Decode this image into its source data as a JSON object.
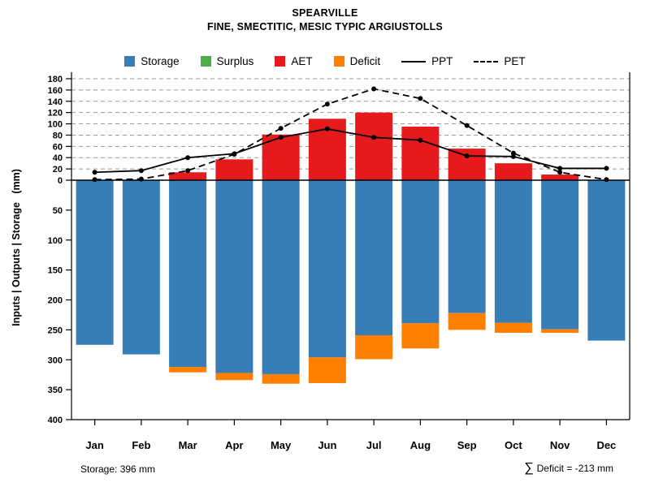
{
  "title": "SPEARVILLE",
  "subtitle": "FINE, SMECTITIC, MESIC TYPIC ARGIUSTOLLS",
  "colors": {
    "storage": "#377EB8",
    "surplus": "#4DAF4A",
    "aet": "#E41A1C",
    "deficit": "#FF7F00",
    "line": "#000000",
    "grid": "#999999"
  },
  "legend": {
    "items": [
      {
        "key": "storage",
        "label": "Storage",
        "type": "square"
      },
      {
        "key": "surplus",
        "label": "Surplus",
        "type": "square"
      },
      {
        "key": "aet",
        "label": "AET",
        "type": "square"
      },
      {
        "key": "deficit",
        "label": "Deficit",
        "type": "square"
      },
      {
        "key": "ppt",
        "label": "PPT",
        "type": "line-solid"
      },
      {
        "key": "pet",
        "label": "PET",
        "type": "line-dashed"
      }
    ]
  },
  "footer": {
    "storage_note": "Storage: 396 mm",
    "sum_symbol": "∑",
    "deficit_note": "Deficit = -213 mm"
  },
  "chart_data": {
    "type": "bar",
    "title": "SPEARVILLE",
    "subtitle": "FINE, SMECTITIC, MESIC TYPIC ARGIUSTOLLS",
    "categories": [
      "Jan",
      "Feb",
      "Mar",
      "Apr",
      "May",
      "Jun",
      "Jul",
      "Aug",
      "Sep",
      "Oct",
      "Nov",
      "Dec"
    ],
    "series": [
      {
        "name": "Storage",
        "type": "bar",
        "direction": "down",
        "values": [
          275,
          291,
          312,
          322,
          324,
          296,
          259,
          239,
          222,
          238,
          249,
          268
        ]
      },
      {
        "name": "Surplus",
        "type": "bar",
        "direction": "up",
        "values": [
          0,
          0,
          0,
          0,
          0,
          0,
          0,
          0,
          0,
          0,
          0,
          0
        ]
      },
      {
        "name": "AET",
        "type": "bar",
        "direction": "up",
        "values": [
          0,
          0,
          14,
          37,
          81,
          109,
          120,
          95,
          56,
          30,
          10,
          0
        ]
      },
      {
        "name": "Deficit",
        "type": "bar",
        "direction": "down",
        "values": [
          0,
          0,
          9,
          12,
          16,
          43,
          40,
          42,
          28,
          17,
          6,
          0
        ]
      },
      {
        "name": "PPT",
        "type": "line",
        "style": "solid",
        "values": [
          14,
          17,
          40,
          47,
          76,
          91,
          76,
          71,
          43,
          42,
          21,
          21
        ]
      },
      {
        "name": "PET",
        "type": "line",
        "style": "dashed",
        "values": [
          1,
          2,
          17,
          46,
          92,
          135,
          162,
          145,
          97,
          48,
          14,
          1
        ]
      }
    ],
    "ylabel": "Inputs | Outputs | Storage   (mm)",
    "y_upper": {
      "min": 0,
      "max": 180,
      "ticks": [
        0,
        20,
        40,
        60,
        80,
        100,
        120,
        140,
        160,
        180
      ]
    },
    "y_lower": {
      "min": 0,
      "max": 400,
      "inverted": true,
      "ticks": [
        50,
        100,
        150,
        200,
        250,
        300,
        350,
        400
      ]
    },
    "grid": "dashed-horizontal-upper-region",
    "legend_position": "top",
    "totals": {
      "storage_capacity_mm": 396,
      "sum_deficit_mm": -213
    }
  }
}
